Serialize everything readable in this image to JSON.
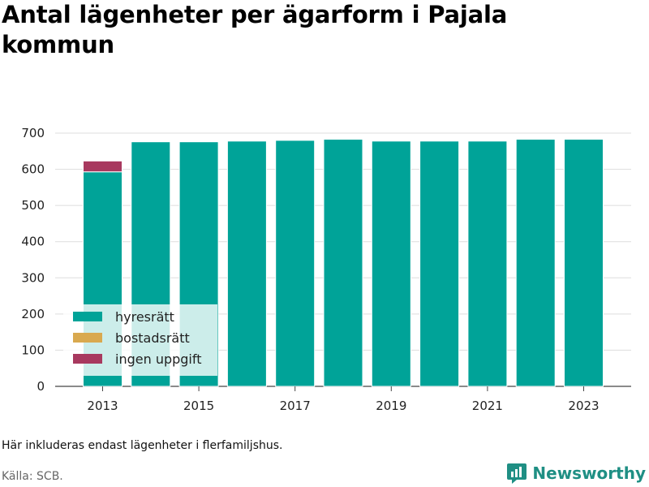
{
  "title": "Antal lägenheter per ägarform i Pajala kommun",
  "note": "Här inkluderas endast lägenheter i flerfamiljshus.",
  "source": "Källa: SCB.",
  "brand": {
    "name": "Newsworthy",
    "color": "#1f8f84"
  },
  "chart_data": {
    "type": "bar",
    "stacked": true,
    "categories": [
      "2013",
      "2014",
      "2015",
      "2016",
      "2017",
      "2018",
      "2019",
      "2020",
      "2021",
      "2022",
      "2023"
    ],
    "x_tick_labels": [
      "2013",
      "2015",
      "2017",
      "2019",
      "2021",
      "2023"
    ],
    "series": [
      {
        "name": "hyresrätt",
        "color": "#00a398",
        "values": [
          593,
          676,
          676,
          678,
          680,
          683,
          678,
          678,
          678,
          683,
          683
        ]
      },
      {
        "name": "bostadsrätt",
        "color": "#d9a94f",
        "values": [
          0,
          0,
          0,
          0,
          0,
          0,
          0,
          0,
          0,
          0,
          0
        ]
      },
      {
        "name": "ingen uppgift",
        "color": "#a8395f",
        "values": [
          30,
          0,
          0,
          0,
          0,
          0,
          0,
          0,
          0,
          0,
          0
        ]
      }
    ],
    "ylim": [
      0,
      700
    ],
    "yticks": [
      0,
      100,
      200,
      300,
      400,
      500,
      600,
      700
    ],
    "grid": true,
    "legend_position": "bottom-left",
    "xlabel": "",
    "ylabel": ""
  }
}
